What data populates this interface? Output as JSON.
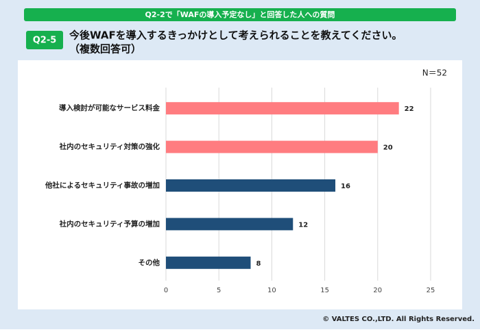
{
  "header": {
    "banner": "Q2-2で「WAFの導入予定なし」と回答した人への質問",
    "tag": "Q2-5",
    "question": [
      "今後WAFを導入するきっかけとして考えられることを教えてください。",
      "（複数回答可）"
    ]
  },
  "chart_data": {
    "type": "bar",
    "orientation": "horizontal",
    "note": "N＝52",
    "categories": [
      "導入検討が可能なサービス料金",
      "社内のセキュリティ対策の強化",
      "他社によるセキュリティ事故の増加",
      "社内のセキュリティ予算の増加",
      "その他"
    ],
    "values": [
      22,
      20,
      16,
      12,
      8
    ],
    "colors": [
      "#ff7c80",
      "#ff7c80",
      "#1f4e79",
      "#1f4e79",
      "#1f4e79"
    ],
    "xlim": [
      0,
      25
    ],
    "xticks": [
      0,
      5,
      10,
      15,
      20,
      25
    ],
    "grid": true
  },
  "footer": {
    "copyright": "© VALTES CO.,LTD. All Rights Reserved."
  }
}
